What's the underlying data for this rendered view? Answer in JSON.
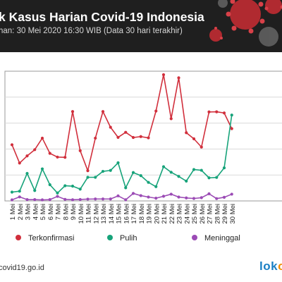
{
  "header": {
    "title": "k Kasus Harian Covid-19 Indonesia",
    "subtitle": "han: 30 Mei 2020 16:30 WIB (Data 30 hari terakhir)"
  },
  "footer": {
    "source": "covid19.go.id",
    "brand_a": "lok",
    "brand_b": "o"
  },
  "colors": {
    "terkonfirmasi": "#d12f3c",
    "pulih": "#17a37a",
    "meninggal": "#9b4bb5",
    "header_bg": "#1f1f1f"
  },
  "icons": {
    "header_art": "coronavirus-illustration"
  },
  "chart_data": {
    "type": "line",
    "title": "",
    "xlabel": "",
    "ylabel": "",
    "ylim": [
      0,
      1000
    ],
    "grid": true,
    "legend_position": "bottom",
    "categories": [
      "1 Mei",
      "2 Mei",
      "3 Mei",
      "4 Mei",
      "5 Mei",
      "6 Mei",
      "7 Mei",
      "8 Mei",
      "9 Mei",
      "10 Mei",
      "11 Mei",
      "12 Mei",
      "13 Mei",
      "14 Mei",
      "15 Mei",
      "16 Mei",
      "17 Mei",
      "18 Mei",
      "19 Mei",
      "20 Mei",
      "21 Mei",
      "22 Mei",
      "23 Mei",
      "24 Mei",
      "25 Mei",
      "26 Mei",
      "27 Mei",
      "28 Mei",
      "29 Mei",
      "30 Mei"
    ],
    "series": [
      {
        "name": "Terkonfirmasi",
        "color": "#d12f3c",
        "values": [
          433,
          292,
          347,
          395,
          484,
          367,
          338,
          336,
          689,
          387,
          233,
          484,
          689,
          568,
          490,
          529,
          489,
          496,
          486,
          693,
          973,
          634,
          949,
          526,
          479,
          415,
          686,
          687,
          678,
          557
        ]
      },
      {
        "name": "Pulih",
        "color": "#17a37a",
        "values": [
          68,
          75,
          212,
          80,
          247,
          125,
          61,
          117,
          114,
          91,
          182,
          182,
          228,
          235,
          294,
          101,
          219,
          195,
          143,
          110,
          264,
          221,
          189,
          153,
          242,
          236,
          178,
          181,
          255,
          662
        ]
      },
      {
        "name": "Meninggal",
        "color": "#9b4bb5",
        "values": [
          8,
          31,
          10,
          10,
          8,
          10,
          35,
          12,
          9,
          11,
          14,
          15,
          15,
          15,
          39,
          9,
          58,
          41,
          30,
          21,
          36,
          52,
          30,
          23,
          19,
          25,
          55,
          18,
          28,
          52
        ]
      }
    ]
  }
}
